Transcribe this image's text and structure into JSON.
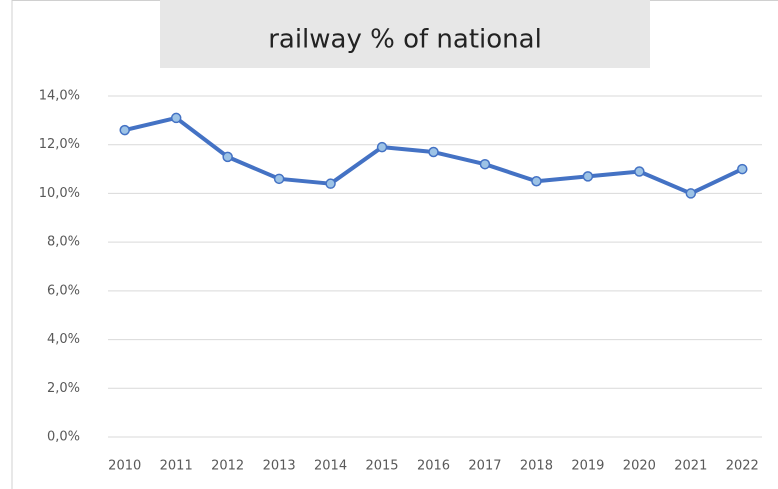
{
  "chart_data": {
    "type": "line",
    "title": "railway % of national",
    "categories": [
      "2010",
      "2011",
      "2012",
      "2013",
      "2014",
      "2015",
      "2016",
      "2017",
      "2018",
      "2019",
      "2020",
      "2021",
      "2022"
    ],
    "values": [
      12.6,
      13.1,
      11.5,
      10.6,
      10.4,
      11.9,
      11.7,
      11.2,
      10.5,
      10.7,
      10.9,
      10.0,
      11.0
    ],
    "color": "#4472c4",
    "marker_color": "#9dc3e6",
    "ylim": [
      0,
      14
    ],
    "yticks": [
      {
        "value": 0,
        "label": "0,0%"
      },
      {
        "value": 2,
        "label": "2,0%"
      },
      {
        "value": 4,
        "label": "4,0%"
      },
      {
        "value": 6,
        "label": "6,0%"
      },
      {
        "value": 8,
        "label": "8,0%"
      },
      {
        "value": 10,
        "label": "10,0%"
      },
      {
        "value": 12,
        "label": "12,0%"
      },
      {
        "value": 14,
        "label": "14,0%"
      }
    ],
    "grid": true
  }
}
